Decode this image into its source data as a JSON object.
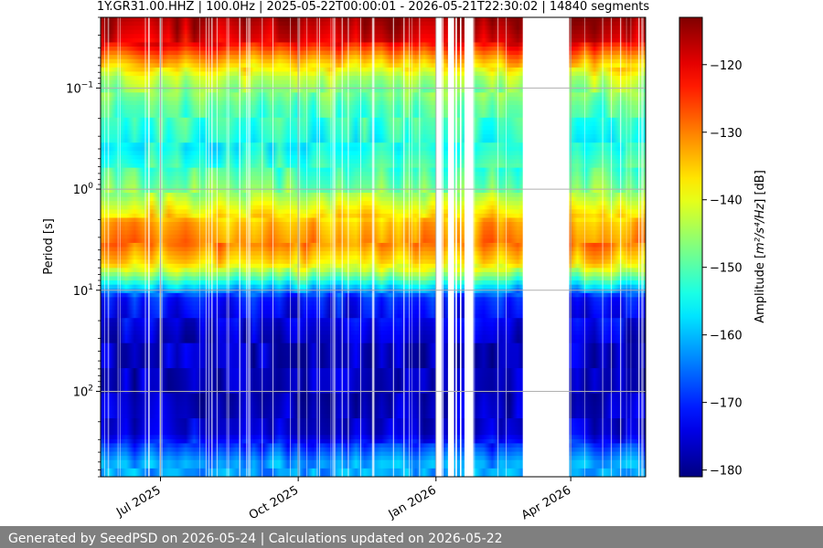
{
  "chart_data": {
    "type": "heatmap",
    "title": "1Y.GR31.00.HHZ | 100.0Hz | 2025-05-22T00:00:01 - 2026-05-21T22:30:02 | 14840 segments",
    "xlabel": "",
    "ylabel": "Period [s]",
    "x_range": [
      "2025-05-22",
      "2026-05-21"
    ],
    "x_ticks": [
      {
        "date": "2025-07-01",
        "label": "Jul 2025"
      },
      {
        "date": "2025-10-01",
        "label": "Oct 2025"
      },
      {
        "date": "2026-01-01",
        "label": "Jan 2026"
      },
      {
        "date": "2026-04-01",
        "label": "Apr 2026"
      }
    ],
    "y_scale": "log",
    "y_range": [
      0.02,
      700
    ],
    "y_inverted": true,
    "y_ticks": [
      {
        "value": 0.1,
        "base": "10",
        "exp": "−1"
      },
      {
        "value": 1,
        "base": "10",
        "exp": "0"
      },
      {
        "value": 10,
        "base": "10",
        "exp": "1"
      },
      {
        "value": 100,
        "base": "10",
        "exp": "2"
      }
    ],
    "grid": true,
    "colormap": "jet",
    "colorbar": {
      "label": "Amplitude [m²/s⁴/Hz] [dB]",
      "range": [
        -181,
        -113
      ],
      "ticks": [
        -120,
        -130,
        -140,
        -150,
        -160,
        -170,
        -180
      ]
    },
    "data_gaps": [
      [
        "2026-01-01",
        "2026-01-05"
      ],
      [
        "2026-01-09",
        "2026-01-13"
      ],
      [
        "2026-01-14",
        "2026-01-15"
      ],
      [
        "2026-01-17",
        "2026-01-18"
      ],
      [
        "2026-01-20",
        "2026-01-26"
      ],
      [
        "2026-02-28",
        "2026-03-31"
      ]
    ],
    "spectral_profile": [
      {
        "period": 0.02,
        "db": -115
      },
      {
        "period": 0.035,
        "db": -120
      },
      {
        "period": 0.05,
        "db": -131
      },
      {
        "period": 0.08,
        "db": -143
      },
      {
        "period": 0.15,
        "db": -150
      },
      {
        "period": 0.4,
        "db": -155
      },
      {
        "period": 1.0,
        "db": -147
      },
      {
        "period": 2.2,
        "db": -133
      },
      {
        "period": 3.5,
        "db": -130
      },
      {
        "period": 5.5,
        "db": -137
      },
      {
        "period": 8,
        "db": -152
      },
      {
        "period": 12,
        "db": -171
      },
      {
        "period": 30,
        "db": -176
      },
      {
        "period": 100,
        "db": -177
      },
      {
        "period": 260,
        "db": -175
      },
      {
        "period": 500,
        "db": -162
      }
    ]
  },
  "footer": {
    "text": "Generated by SeedPSD on 2026-05-24 | Calculations updated on 2026-05-22"
  }
}
